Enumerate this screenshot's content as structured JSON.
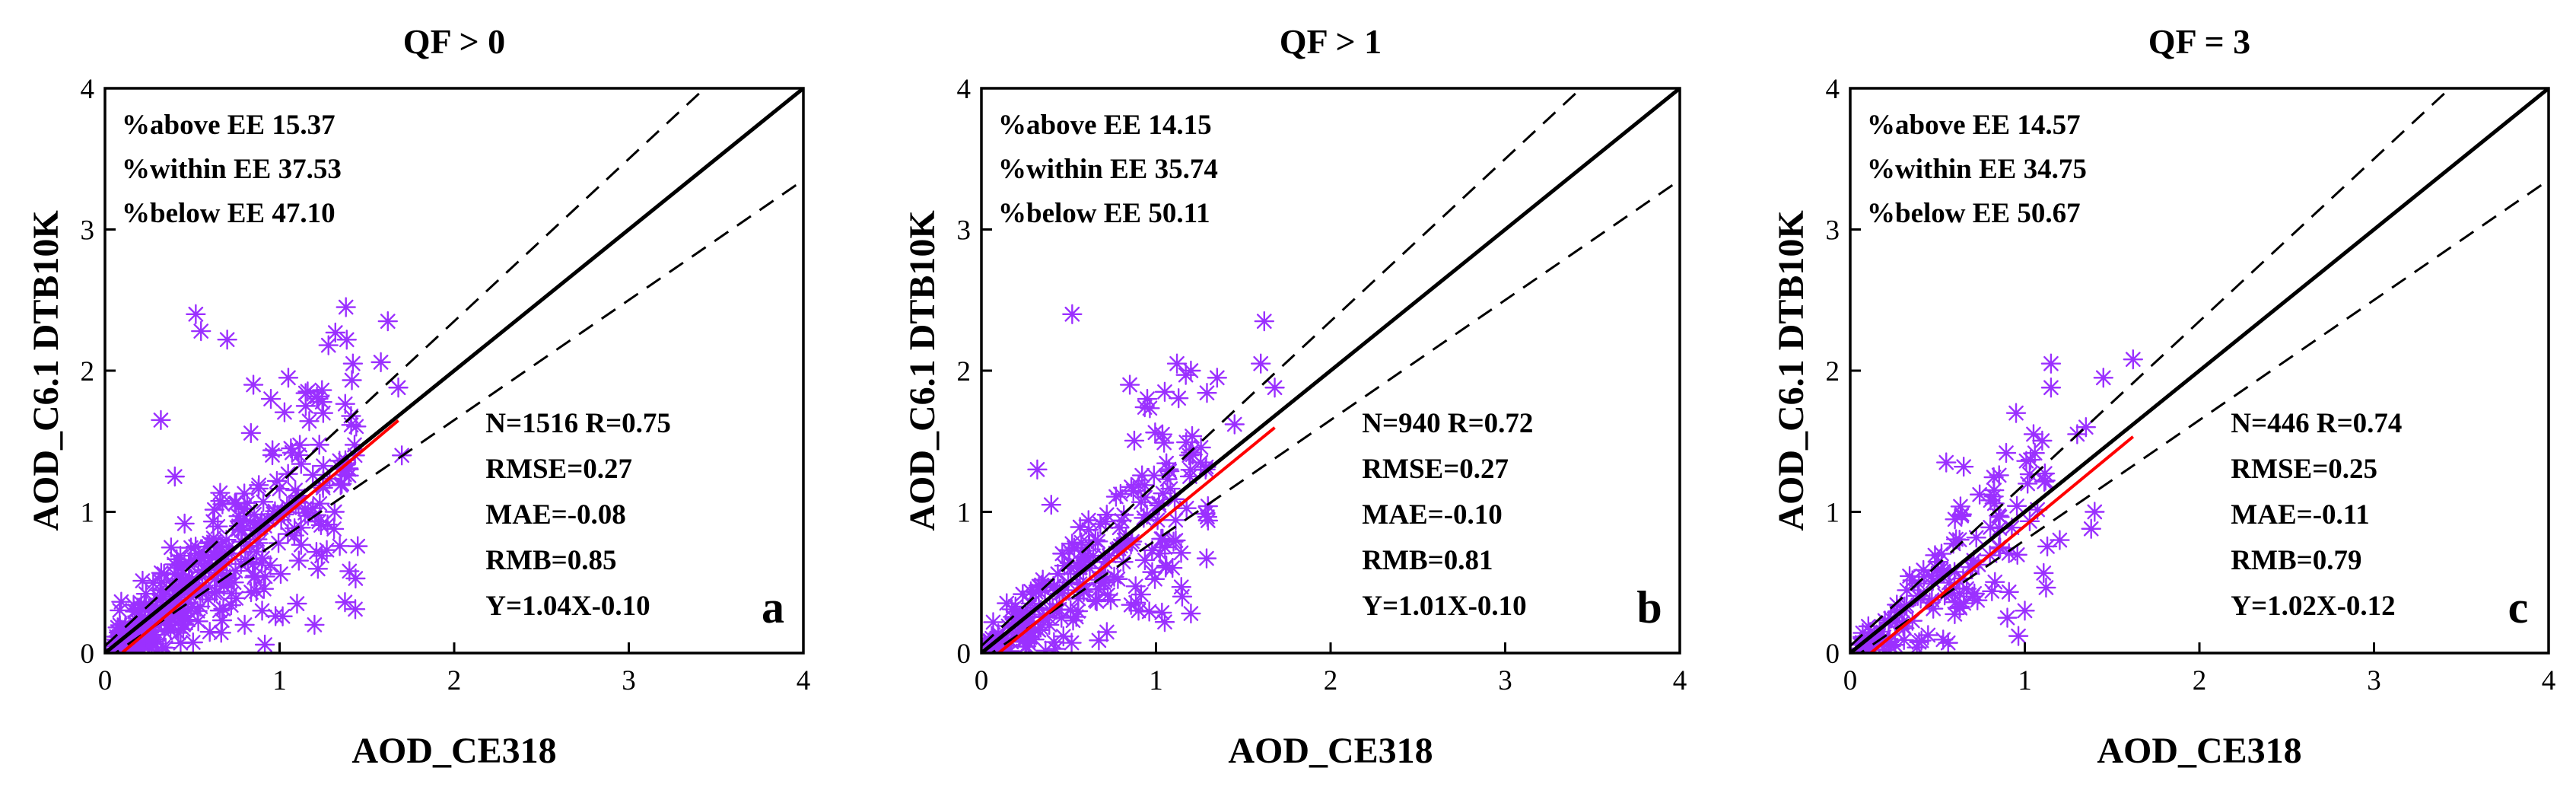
{
  "chart_data": [
    {
      "type": "scatter",
      "panel": "a",
      "title": "QF > 0",
      "xlabel": "AOD_CE318",
      "ylabel": "AOD_C6.1 DTB10K",
      "xlim": [
        0,
        4
      ],
      "ylim": [
        0,
        4
      ],
      "xticks": [
        "0",
        "1",
        "2",
        "3",
        "4"
      ],
      "yticks": [
        "0",
        "1",
        "2",
        "3",
        "4"
      ],
      "ee_stats": [
        "%above EE 15.37",
        "%within EE 37.53",
        "%below EE 47.10"
      ],
      "stats": [
        "N=1516  R=0.75",
        "RMSE=0.27",
        "MAE=-0.08",
        "RMB=0.85",
        "Y=1.04X-0.10"
      ],
      "n": 1516,
      "r": 0.75,
      "fit": {
        "slope": 1.04,
        "intercept": -0.1,
        "x_range": [
          0.1,
          1.68
        ]
      },
      "one_to_one": true,
      "ee_envelope": {
        "abs": 0.05,
        "rel": 0.15
      },
      "marker_color": "#9B30FF",
      "points": [
        [
          0.52,
          2.4
        ],
        [
          0.55,
          2.28
        ],
        [
          0.7,
          2.22
        ],
        [
          1.38,
          2.45
        ],
        [
          1.62,
          2.35
        ],
        [
          1.28,
          2.18
        ],
        [
          1.42,
          2.05
        ],
        [
          1.58,
          2.06
        ],
        [
          1.68,
          1.88
        ],
        [
          1.7,
          1.4
        ],
        [
          1.4,
          0.58
        ],
        [
          1.2,
          0.2
        ],
        [
          1.1,
          0.35
        ],
        [
          0.32,
          1.65
        ],
        [
          0.4,
          1.25
        ],
        [
          0.85,
          1.9
        ],
        [
          0.95,
          1.8
        ],
        [
          1.05,
          1.95
        ],
        [
          1.15,
          1.75
        ],
        [
          1.25,
          1.7
        ],
        [
          0.9,
          0.3
        ],
        [
          0.7,
          0.5
        ],
        [
          0.8,
          0.2
        ],
        [
          0.6,
          0.15
        ],
        [
          0.1,
          0.05
        ]
      ],
      "cloud": {
        "count": 380,
        "x_range": [
          0.05,
          1.45
        ],
        "seed": 11
      }
    },
    {
      "type": "scatter",
      "panel": "b",
      "title": "QF > 1",
      "xlabel": "AOD_CE318",
      "ylabel": "AOD_C6.1 DTB10K",
      "xlim": [
        0,
        4
      ],
      "ylim": [
        0,
        4
      ],
      "xticks": [
        "0",
        "1",
        "2",
        "3",
        "4"
      ],
      "yticks": [
        "0",
        "1",
        "2",
        "3",
        "4"
      ],
      "ee_stats": [
        "%above EE 14.15",
        "%within EE 35.74",
        "%below EE 50.11"
      ],
      "stats": [
        "N=940  R=0.72",
        "RMSE=0.27",
        "MAE=-0.10",
        "RMB=0.81",
        "Y=1.01X-0.10"
      ],
      "n": 940,
      "r": 0.72,
      "fit": {
        "slope": 1.01,
        "intercept": -0.1,
        "x_range": [
          0.1,
          1.68
        ]
      },
      "one_to_one": true,
      "ee_envelope": {
        "abs": 0.05,
        "rel": 0.15
      },
      "marker_color": "#9B30FF",
      "points": [
        [
          0.52,
          2.4
        ],
        [
          1.62,
          2.35
        ],
        [
          1.6,
          2.05
        ],
        [
          1.68,
          1.88
        ],
        [
          1.12,
          2.05
        ],
        [
          1.2,
          2.0
        ],
        [
          0.85,
          1.9
        ],
        [
          0.95,
          1.8
        ],
        [
          1.05,
          1.85
        ],
        [
          1.35,
          1.95
        ],
        [
          1.45,
          1.62
        ],
        [
          0.32,
          1.3
        ],
        [
          0.4,
          1.05
        ],
        [
          1.15,
          0.4
        ],
        [
          1.2,
          0.28
        ],
        [
          1.05,
          0.22
        ],
        [
          0.9,
          0.3
        ],
        [
          0.7,
          0.5
        ],
        [
          0.1,
          0.05
        ]
      ],
      "cloud": {
        "count": 250,
        "x_range": [
          0.05,
          1.3
        ],
        "seed": 23
      }
    },
    {
      "type": "scatter",
      "panel": "c",
      "title": "QF = 3",
      "xlabel": "AOD_CE318",
      "ylabel": "AOD_C6.1 DTB10K",
      "xlim": [
        0,
        4
      ],
      "ylim": [
        0,
        4
      ],
      "xticks": [
        "0",
        "1",
        "2",
        "3",
        "4"
      ],
      "yticks": [
        "0",
        "1",
        "2",
        "3",
        "4"
      ],
      "ee_stats": [
        "%above EE 14.57",
        "%within EE 34.75",
        "%below EE 50.67"
      ],
      "stats": [
        "N=446  R=0.74",
        "RMSE=0.25",
        "MAE=-0.11",
        "RMB=0.79",
        "Y=1.02X-0.12"
      ],
      "n": 446,
      "r": 0.74,
      "fit": {
        "slope": 1.02,
        "intercept": -0.12,
        "x_range": [
          0.1,
          1.62
        ]
      },
      "one_to_one": true,
      "ee_envelope": {
        "abs": 0.05,
        "rel": 0.15
      },
      "marker_color": "#9B30FF",
      "points": [
        [
          1.15,
          2.05
        ],
        [
          1.15,
          1.88
        ],
        [
          1.62,
          2.08
        ],
        [
          1.45,
          1.95
        ],
        [
          0.95,
          1.7
        ],
        [
          1.05,
          1.55
        ],
        [
          1.35,
          1.6
        ],
        [
          1.3,
          1.55
        ],
        [
          0.65,
          1.32
        ],
        [
          0.55,
          1.35
        ],
        [
          1.4,
          1.0
        ],
        [
          1.38,
          0.88
        ],
        [
          1.2,
          0.8
        ],
        [
          1.0,
          0.3
        ],
        [
          0.9,
          0.25
        ],
        [
          0.7,
          0.4
        ],
        [
          0.1,
          0.05
        ]
      ],
      "cloud": {
        "count": 140,
        "x_range": [
          0.05,
          1.15
        ],
        "seed": 37
      }
    }
  ]
}
